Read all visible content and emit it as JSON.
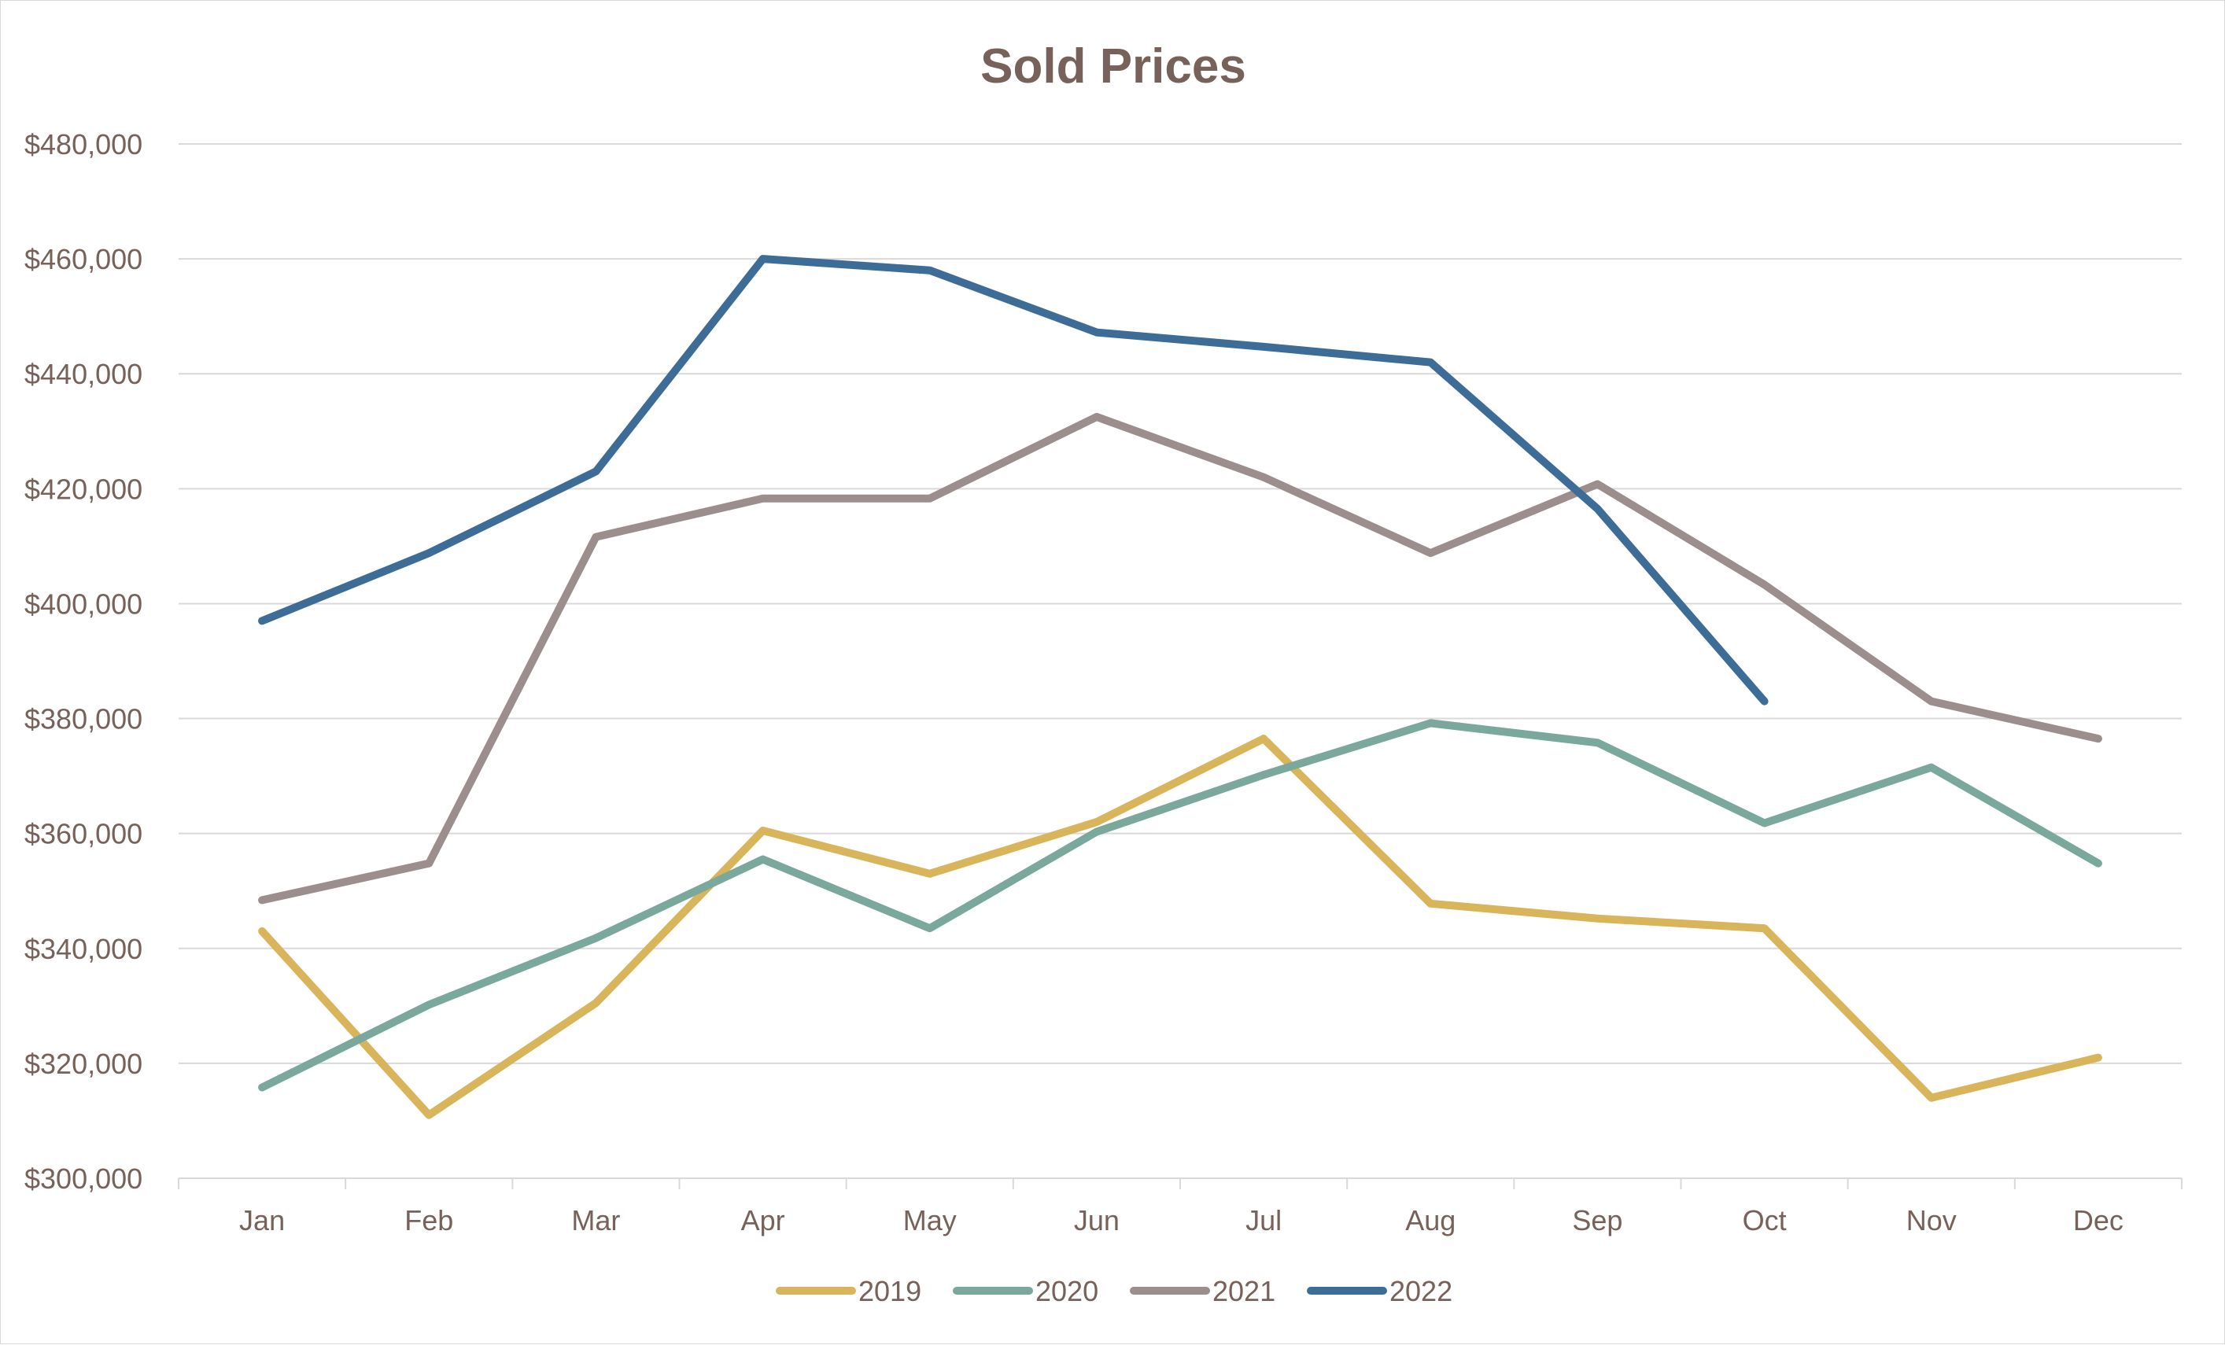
{
  "chart_data": {
    "type": "line",
    "title": "Sold Prices",
    "xlabel": "",
    "ylabel": "",
    "categories": [
      "Jan",
      "Feb",
      "Mar",
      "Apr",
      "May",
      "Jun",
      "Jul",
      "Aug",
      "Sep",
      "Oct",
      "Nov",
      "Dec"
    ],
    "ylim": [
      300000,
      480000
    ],
    "ytick_values": [
      300000,
      320000,
      340000,
      360000,
      380000,
      400000,
      420000,
      440000,
      460000,
      480000
    ],
    "ytick_labels": [
      "$300,000",
      "$320,000",
      "$340,000",
      "$360,000",
      "$380,000",
      "$400,000",
      "$420,000",
      "$440,000",
      "$460,000",
      "$480,000"
    ],
    "grid": true,
    "legend_position": "bottom",
    "series": [
      {
        "name": "2019",
        "color": "#d8b45a",
        "values": [
          343000,
          311000,
          330500,
          360500,
          353000,
          362000,
          376500,
          347800,
          345200,
          343500,
          314000,
          321000
        ]
      },
      {
        "name": "2020",
        "color": "#7aa89c",
        "values": [
          315800,
          330200,
          341800,
          355500,
          343500,
          360300,
          370200,
          379200,
          375800,
          361800,
          371500,
          354800
        ]
      },
      {
        "name": "2021",
        "color": "#9b8e8d",
        "values": [
          348400,
          354800,
          411600,
          418300,
          418300,
          432500,
          422000,
          408800,
          420800,
          403300,
          383000,
          376500
        ]
      },
      {
        "name": "2022",
        "color": "#3d6d96",
        "values": [
          397000,
          408800,
          423000,
          460000,
          458000,
          447200,
          444700,
          442000,
          416500,
          383000,
          null,
          null
        ]
      }
    ]
  }
}
